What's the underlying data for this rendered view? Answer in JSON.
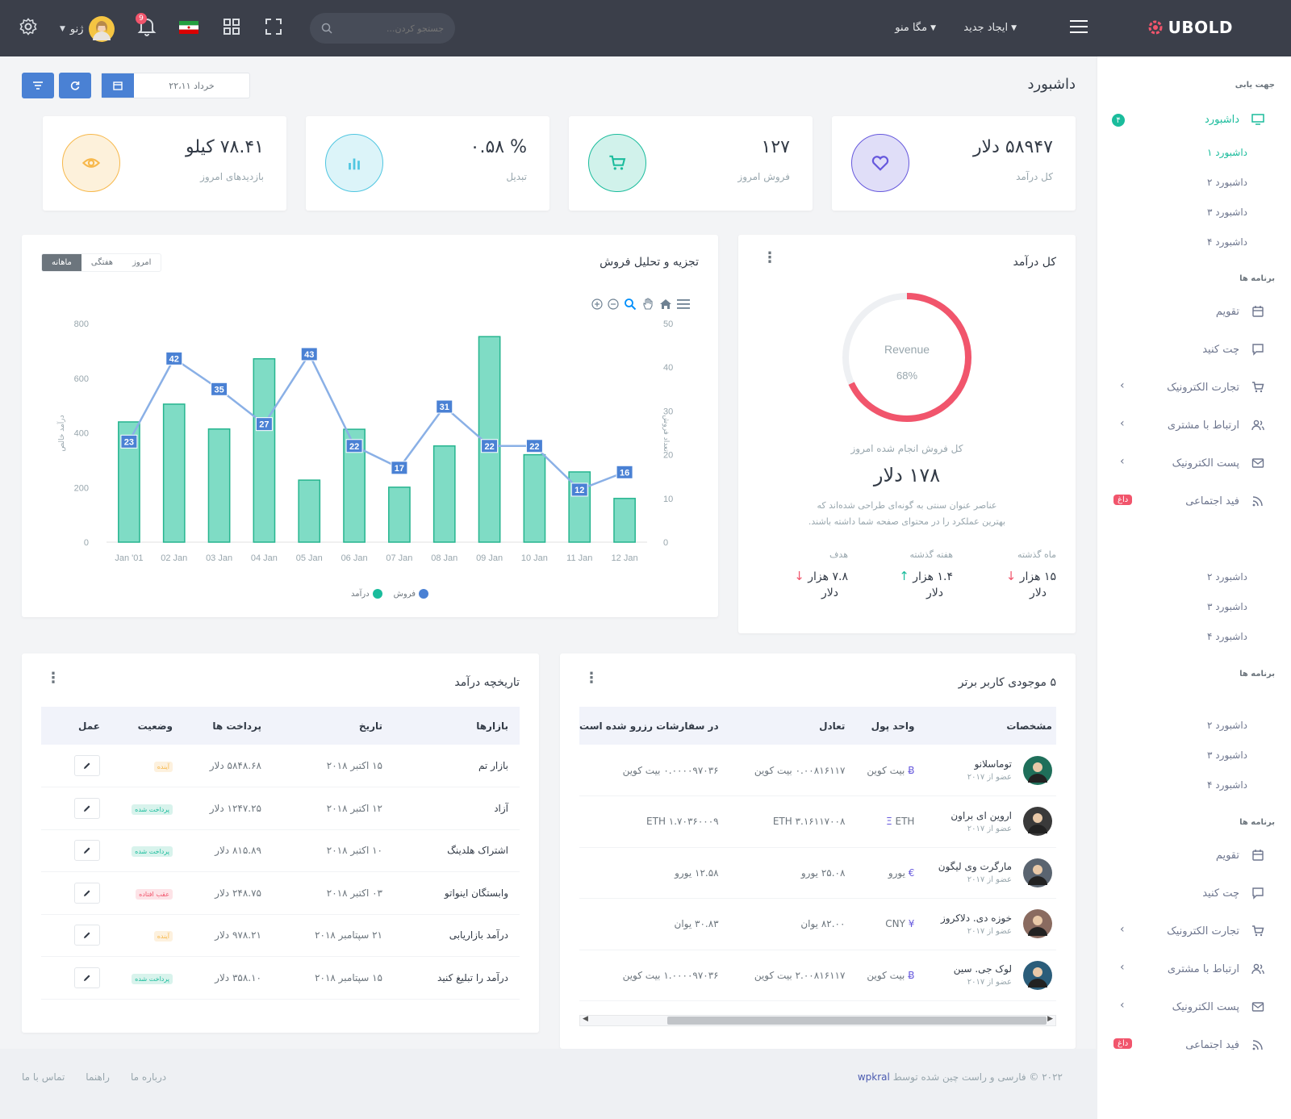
{
  "brand": {
    "name": "UBOLD"
  },
  "topbar": {
    "create_new": "ایجاد جدید",
    "mega_menu": "مگا منو",
    "search_placeholder": "جستجو کردن...",
    "user_name": "ژنو",
    "notification_count": "9"
  },
  "page": {
    "title": "داشبورد",
    "date_value": "خرداد ۲۲،۱۱"
  },
  "stats": [
    {
      "value": "۵۸۹۴۷ دلار",
      "label": "کل درآمد",
      "color": "#6658dd",
      "icon": "heart-icon"
    },
    {
      "value": "۱۲۷",
      "label": "فروش امروز",
      "color": "#1abc9c",
      "icon": "cart-icon"
    },
    {
      "value": "% ۰.۵۸",
      "label": "تبدیل",
      "color": "#4fc6e1",
      "icon": "bar-chart-icon"
    },
    {
      "value": "۷۸.۴۱ کیلو",
      "label": "بازدیدهای امروز",
      "color": "#f7b84b",
      "icon": "eye-icon"
    }
  ],
  "revenue_card": {
    "title": "کل درآمد",
    "donut_label": "Revenue",
    "donut_value": "68%",
    "percent": 68,
    "subtitle": "کل فروش انجام شده امروز",
    "amount": "۱۷۸ دلار",
    "desc_line1": "عناصر عنوان سنتی به گونه‌ای طراحی شده‌اند که",
    "desc_line2": "بهترین عملکرد را در محتوای صفحه شما داشته باشند.",
    "stats": [
      {
        "label": "ماه گذشته",
        "value_line1": "۱۵ هزار",
        "value_line2": "دلار",
        "trend": "down"
      },
      {
        "label": "هفته گذشته",
        "value_line1": "۱.۴ هزار",
        "value_line2": "دلار",
        "trend": "up"
      },
      {
        "label": "هدف",
        "value_line1": "۷.۸ هزار",
        "value_line2": "دلار",
        "trend": "down"
      }
    ]
  },
  "sales_card": {
    "title": "تجزیه و تحلیل فروش",
    "tabs": [
      "امروز",
      "هفتگی",
      "ماهانه"
    ],
    "active_tab": "ماهانه",
    "legend": [
      "فروش",
      "درآمد"
    ]
  },
  "chart_data": {
    "type": "bar",
    "categories": [
      "Jan '01",
      "02 Jan",
      "03 Jan",
      "04 Jan",
      "05 Jan",
      "06 Jan",
      "07 Jan",
      "08 Jan",
      "09 Jan",
      "10 Jan",
      "11 Jan",
      "12 Jan"
    ],
    "series": [
      {
        "name": "درآمد",
        "type": "bar",
        "axis": "left",
        "color": "#7fdcc5",
        "values": [
          440,
          505,
          414,
          671,
          227,
          413,
          201,
          352,
          752,
          320,
          257,
          160
        ]
      },
      {
        "name": "فروش",
        "type": "line",
        "axis": "right",
        "color": "#8ab0e6",
        "values": [
          23,
          42,
          35,
          27,
          43,
          22,
          17,
          31,
          22,
          22,
          12,
          16
        ]
      }
    ],
    "ylabel_left": "درآمد خالص",
    "ylabel_right": "تعداد فروش",
    "ylim_left": [
      0,
      800
    ],
    "ylim_right": [
      0,
      50
    ],
    "yticks_left": [
      0,
      200,
      400,
      600,
      800
    ],
    "yticks_right": [
      0,
      10,
      20,
      30,
      40,
      50
    ]
  },
  "history_card": {
    "title": "تاریخچه درآمد",
    "headers": [
      "بازارها",
      "تاریخ",
      "پرداخت ها",
      "وضعیت",
      "عمل"
    ],
    "rows": [
      {
        "market": "بازار تم",
        "date": "۱۵ اکتبر ۲۰۱۸",
        "payment": "۵۸۴۸.۶۸ دلار",
        "status": "آینده",
        "status_type": "upcoming"
      },
      {
        "market": "آزاد",
        "date": "۱۲ اکتبر ۲۰۱۸",
        "payment": "۱۲۴۷.۲۵ دلار",
        "status": "پرداخت شده",
        "status_type": "paid"
      },
      {
        "market": "اشتراک هلدینگ",
        "date": "۱۰ اکتبر ۲۰۱۸",
        "payment": "۸۱۵.۸۹ دلار",
        "status": "پرداخت شده",
        "status_type": "paid"
      },
      {
        "market": "وابستگان اینواتو",
        "date": "۰۳ اکتبر ۲۰۱۸",
        "payment": "۲۴۸.۷۵ دلار",
        "status": "عقب افتاده",
        "status_type": "overdue"
      },
      {
        "market": "درآمد بازاریابی",
        "date": "۲۱ سپتامبر ۲۰۱۸",
        "payment": "۹۷۸.۲۱ دلار",
        "status": "آینده",
        "status_type": "upcoming"
      },
      {
        "market": "درآمد را تبلیغ کنید",
        "date": "۱۵ سپتامبر ۲۰۱۸",
        "payment": "۳۵۸.۱۰ دلار",
        "status": "پرداخت شده",
        "status_type": "paid"
      }
    ]
  },
  "users_card": {
    "title": "۵ موجودی کاربر برتر",
    "headers": [
      "مشخصات",
      "واحد پول",
      "تعادل",
      "در سفارشات رزرو شده است"
    ],
    "rows": [
      {
        "name": "توماسلانو",
        "since": "عضو از ۲۰۱۷",
        "currency": "بیت کوین",
        "currency_icon": "Ƀ",
        "balance": "۰.۰۰۸۱۶۱۱۷ بیت کوین",
        "reserved": "۰.۰۰۰۰۹۷۰۳۶ بیت کوین",
        "avatar_color": "#1f6f5a"
      },
      {
        "name": "اروین ای براون",
        "since": "عضو از ۲۰۱۷",
        "currency": "ETH",
        "currency_icon": "Ξ",
        "balance": "ETH ۳.۱۶۱۱۷۰۰۸",
        "reserved": "ETH ۱.۷۰۳۶۰۰۰۹",
        "avatar_color": "#3a3a3a"
      },
      {
        "name": "مارگرت وی لیگون",
        "since": "عضو از ۲۰۱۷",
        "currency": "یورو",
        "currency_icon": "€",
        "balance": "۲۵.۰۸ یورو",
        "reserved": "۱۲.۵۸ یورو",
        "avatar_color": "#5a6470"
      },
      {
        "name": "خوزه دی. دلاکروز",
        "since": "عضو از ۲۰۱۷",
        "currency": "CNY",
        "currency_icon": "¥",
        "balance": "۸۲.۰۰ یوان",
        "reserved": "۳۰.۸۳ یوان",
        "avatar_color": "#8a6b60"
      },
      {
        "name": "لوک جی. سین",
        "since": "عضو از ۲۰۱۷",
        "currency": "بیت کوین",
        "currency_icon": "Ƀ",
        "balance": "۲.۰۰۸۱۶۱۱۷ بیت کوین",
        "reserved": "۱.۰۰۰۰۹۷۰۳۶ بیت کوین",
        "avatar_color": "#2b5d7a"
      }
    ]
  },
  "sidebar": {
    "nav_title": "جهت یابی",
    "apps_title": "برنامه ها",
    "dashboard_label": "داشبورد",
    "dashboard_badge": "۴",
    "dashboard_subs": [
      "داشبورد ۱",
      "داشبورد ۲",
      "داشبورد ۳",
      "داشبورد ۴"
    ],
    "apps": [
      {
        "label": "تقویم",
        "icon": "calendar-icon"
      },
      {
        "label": "چت کنید",
        "icon": "chat-icon"
      },
      {
        "label": "تجارت الکترونیک",
        "icon": "cart-icon",
        "chevron": true
      },
      {
        "label": "ارتباط با مشتری",
        "icon": "users-icon",
        "chevron": true
      },
      {
        "label": "پست الکترونیک",
        "icon": "mail-icon",
        "chevron": true
      },
      {
        "label": "فید اجتماعی",
        "icon": "rss-icon",
        "badge": "داغ"
      }
    ],
    "extra_subs": [
      "داشبورد ۲",
      "داشبورد ۳",
      "داشبورد ۴"
    ]
  },
  "footer": {
    "copyright": "۲۰۲۲ © فارسی و راست چین شده توسط",
    "author": "wpkral",
    "links": [
      "درباره ما",
      "راهنما",
      "تماس با ما"
    ]
  },
  "colors": {
    "primary": "#4a81d4",
    "teal": "#1abc9c",
    "danger": "#f1556c",
    "topbar": "#3b3f4a"
  }
}
